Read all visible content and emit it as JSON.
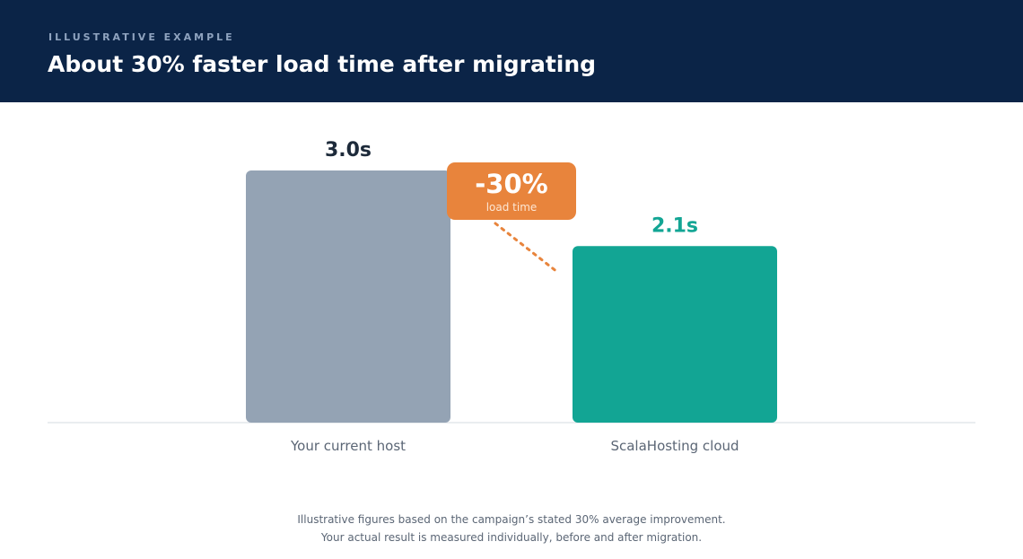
{
  "header": {
    "eyebrow": "ILLUSTRATIVE EXAMPLE",
    "title": "About 30% faster load time after migrating"
  },
  "chart_data": {
    "type": "bar",
    "categories": [
      "Your current host",
      "ScalaHosting cloud"
    ],
    "values": [
      3.0,
      2.1
    ],
    "value_labels": [
      "3.0s",
      "2.1s"
    ],
    "unit": "s",
    "ylim": [
      0,
      3.0
    ],
    "colors": [
      "#94a3b4",
      "#12a594"
    ],
    "value_label_colors": [
      "#1d2a3a",
      "#12a594"
    ],
    "annotation": {
      "value": "-30%",
      "sub": "load time",
      "color": "#e8843c"
    },
    "grid": false,
    "legend": "none"
  },
  "footnote": {
    "line1": "Illustrative figures based on the campaign’s stated 30% average improvement.",
    "line2": "Your actual result is measured individually, before and after migration."
  }
}
